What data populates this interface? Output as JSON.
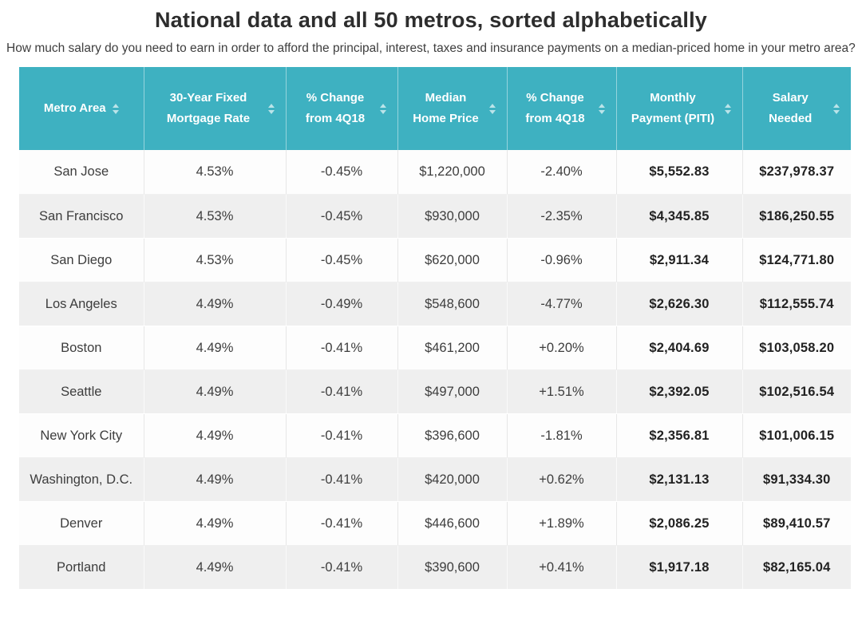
{
  "header": {
    "title": "National data and all 50 metros, sorted alphabetically",
    "subtitle": "How much salary do you need to earn in order to afford the principal, interest, taxes and insurance payments on a median-priced home in your metro area?"
  },
  "colors": {
    "table_header_bg": "#3EB1C1",
    "row_alt_bg": "#EFEFEF",
    "row_bg": "#FDFDFD",
    "header_text": "#FFFFFF",
    "body_text": "#3D3D3D"
  },
  "chart_data": {
    "type": "table",
    "title": "National data and all 50 metros, sorted alphabetically",
    "columns": [
      "Metro Area",
      "30-Year Fixed Mortgage Rate",
      "% Change from 4Q18",
      "Median Home Price",
      "% Change from 4Q18",
      "Monthly Payment (PITI)",
      "Salary Needed"
    ],
    "columns_sortable": true,
    "rows": [
      [
        "San Jose",
        "4.53%",
        "-0.45%",
        "$1,220,000",
        "-2.40%",
        "$5,552.83",
        "$237,978.37"
      ],
      [
        "San Francisco",
        "4.53%",
        "-0.45%",
        "$930,000",
        "-2.35%",
        "$4,345.85",
        "$186,250.55"
      ],
      [
        "San Diego",
        "4.53%",
        "-0.45%",
        "$620,000",
        "-0.96%",
        "$2,911.34",
        "$124,771.80"
      ],
      [
        "Los Angeles",
        "4.49%",
        "-0.49%",
        "$548,600",
        "-4.77%",
        "$2,626.30",
        "$112,555.74"
      ],
      [
        "Boston",
        "4.49%",
        "-0.41%",
        "$461,200",
        "+0.20%",
        "$2,404.69",
        "$103,058.20"
      ],
      [
        "Seattle",
        "4.49%",
        "-0.41%",
        "$497,000",
        "+1.51%",
        "$2,392.05",
        "$102,516.54"
      ],
      [
        "New York City",
        "4.49%",
        "-0.41%",
        "$396,600",
        "-1.81%",
        "$2,356.81",
        "$101,006.15"
      ],
      [
        "Washington, D.C.",
        "4.49%",
        "-0.41%",
        "$420,000",
        "+0.62%",
        "$2,131.13",
        "$91,334.30"
      ],
      [
        "Denver",
        "4.49%",
        "-0.41%",
        "$446,600",
        "+1.89%",
        "$2,086.25",
        "$89,410.57"
      ],
      [
        "Portland",
        "4.49%",
        "-0.41%",
        "$390,600",
        "+0.41%",
        "$1,917.18",
        "$82,165.04"
      ]
    ]
  }
}
